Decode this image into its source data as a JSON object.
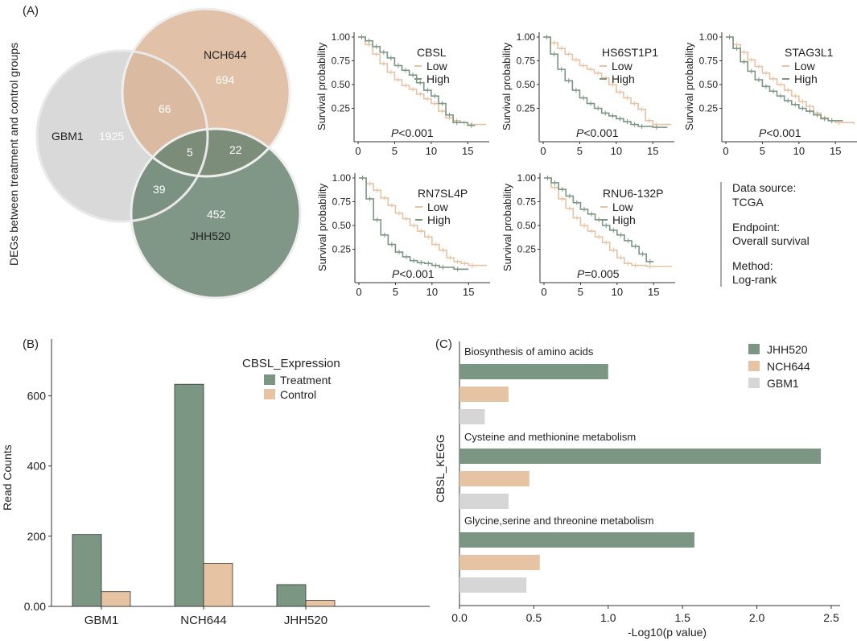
{
  "colors": {
    "green": "#7b9683",
    "tan": "#e6c3a3",
    "gray": "#d6d6d6",
    "venn_gray": "#cfcfcf",
    "venn_tan": "#d9b392",
    "venn_green": "#6a8472"
  },
  "panel_labels": {
    "a": "(A)",
    "b": "(B)",
    "c": "(C)"
  },
  "chart_data": [
    {
      "type": "venn",
      "ylabel": "DEGs between treatment and control groups",
      "sets": [
        {
          "name": "GBM1",
          "only": "1925"
        },
        {
          "name": "NCH644",
          "only": "694"
        },
        {
          "name": "JHH520",
          "only": "452"
        }
      ],
      "overlaps": {
        "gbm1_nch644": "66",
        "nch644_jhh520": "22",
        "gbm1_jhh520": "39",
        "all": "5"
      }
    },
    {
      "type": "line",
      "kind": "kaplan-meier",
      "ylabel": "Survival probability",
      "yticks": [
        "1.00",
        "0.75",
        "0.50",
        "0.25"
      ],
      "xticks": [
        "0",
        "5",
        "10",
        "15"
      ],
      "xlim": [
        0,
        17.5
      ],
      "legend_low": "Low",
      "legend_high": "High",
      "p_prefix": "P",
      "panels": [
        {
          "gene": "CBSL",
          "p": "<0.001",
          "low": [
            [
              0,
              1
            ],
            [
              1,
              0.92
            ],
            [
              2,
              0.82
            ],
            [
              3,
              0.72
            ],
            [
              4,
              0.63
            ],
            [
              5,
              0.55
            ],
            [
              6,
              0.49
            ],
            [
              7,
              0.45
            ],
            [
              8,
              0.4
            ],
            [
              9,
              0.35
            ],
            [
              10,
              0.3
            ],
            [
              11,
              0.22
            ],
            [
              12,
              0.15
            ],
            [
              13,
              0.12
            ],
            [
              14,
              0.1
            ],
            [
              15,
              0.08
            ],
            [
              17.5,
              0.08
            ]
          ],
          "high": [
            [
              0,
              1
            ],
            [
              1,
              0.96
            ],
            [
              2,
              0.9
            ],
            [
              3,
              0.84
            ],
            [
              4,
              0.78
            ],
            [
              5,
              0.7
            ],
            [
              6,
              0.65
            ],
            [
              7,
              0.6
            ],
            [
              8,
              0.52
            ],
            [
              9,
              0.44
            ],
            [
              10,
              0.38
            ],
            [
              11,
              0.3
            ],
            [
              12,
              0.18
            ],
            [
              13,
              0.1
            ],
            [
              15,
              0.07
            ],
            [
              16,
              0.07
            ]
          ]
        },
        {
          "gene": "HS6ST1P1",
          "p": "<0.001",
          "low": [
            [
              0,
              1
            ],
            [
              1,
              0.94
            ],
            [
              2,
              0.88
            ],
            [
              3,
              0.82
            ],
            [
              4,
              0.76
            ],
            [
              5,
              0.7
            ],
            [
              6,
              0.66
            ],
            [
              7,
              0.62
            ],
            [
              8,
              0.57
            ],
            [
              9,
              0.5
            ],
            [
              10,
              0.42
            ],
            [
              11,
              0.36
            ],
            [
              12,
              0.3
            ],
            [
              13,
              0.24
            ],
            [
              14,
              0.12
            ],
            [
              15,
              0.08
            ],
            [
              17.5,
              0.08
            ]
          ],
          "high": [
            [
              0,
              1
            ],
            [
              1,
              0.82
            ],
            [
              2,
              0.66
            ],
            [
              3,
              0.54
            ],
            [
              4,
              0.44
            ],
            [
              5,
              0.36
            ],
            [
              6,
              0.3
            ],
            [
              7,
              0.25
            ],
            [
              8,
              0.2
            ],
            [
              9,
              0.17
            ],
            [
              10,
              0.14
            ],
            [
              11,
              0.11
            ],
            [
              12,
              0.08
            ],
            [
              13,
              0.06
            ],
            [
              15,
              0.05
            ],
            [
              17,
              0.05
            ]
          ]
        },
        {
          "gene": "STAG3L1",
          "p": "<0.001",
          "low": [
            [
              0,
              1
            ],
            [
              1,
              0.92
            ],
            [
              2,
              0.84
            ],
            [
              3,
              0.76
            ],
            [
              4,
              0.69
            ],
            [
              5,
              0.62
            ],
            [
              6,
              0.56
            ],
            [
              7,
              0.5
            ],
            [
              8,
              0.44
            ],
            [
              9,
              0.38
            ],
            [
              10,
              0.32
            ],
            [
              11,
              0.27
            ],
            [
              12,
              0.2
            ],
            [
              13,
              0.15
            ],
            [
              14,
              0.12
            ],
            [
              15,
              0.1
            ],
            [
              17.5,
              0.08
            ]
          ],
          "high": [
            [
              0,
              1
            ],
            [
              1,
              0.88
            ],
            [
              2,
              0.74
            ],
            [
              3,
              0.64
            ],
            [
              4,
              0.55
            ],
            [
              5,
              0.48
            ],
            [
              6,
              0.43
            ],
            [
              7,
              0.38
            ],
            [
              8,
              0.33
            ],
            [
              9,
              0.29
            ],
            [
              10,
              0.25
            ],
            [
              11,
              0.22
            ],
            [
              12,
              0.18
            ],
            [
              13,
              0.14
            ],
            [
              14,
              0.12
            ],
            [
              16,
              0.12
            ]
          ]
        },
        {
          "gene": "RN7SL4P",
          "p": "<0.001",
          "low": [
            [
              0,
              1
            ],
            [
              1,
              0.94
            ],
            [
              2,
              0.87
            ],
            [
              3,
              0.79
            ],
            [
              4,
              0.71
            ],
            [
              5,
              0.63
            ],
            [
              6,
              0.57
            ],
            [
              7,
              0.5
            ],
            [
              8,
              0.44
            ],
            [
              9,
              0.38
            ],
            [
              10,
              0.3
            ],
            [
              11,
              0.24
            ],
            [
              12,
              0.16
            ],
            [
              13,
              0.12
            ],
            [
              14,
              0.1
            ],
            [
              15,
              0.08
            ],
            [
              17.5,
              0.08
            ]
          ],
          "high": [
            [
              0,
              1
            ],
            [
              1,
              0.78
            ],
            [
              2,
              0.56
            ],
            [
              3,
              0.4
            ],
            [
              4,
              0.3
            ],
            [
              5,
              0.22
            ],
            [
              6,
              0.17
            ],
            [
              7,
              0.13
            ],
            [
              8,
              0.11
            ],
            [
              9,
              0.1
            ],
            [
              10,
              0.08
            ],
            [
              11,
              0.06
            ],
            [
              13,
              0.04
            ],
            [
              15,
              0.04
            ]
          ]
        },
        {
          "gene": "RNU6-132P",
          "p": "=0.005",
          "low": [
            [
              0,
              1
            ],
            [
              1,
              0.9
            ],
            [
              2,
              0.78
            ],
            [
              3,
              0.68
            ],
            [
              4,
              0.58
            ],
            [
              5,
              0.5
            ],
            [
              6,
              0.44
            ],
            [
              7,
              0.38
            ],
            [
              8,
              0.32
            ],
            [
              9,
              0.24
            ],
            [
              10,
              0.16
            ],
            [
              11,
              0.1
            ],
            [
              12,
              0.08
            ],
            [
              14,
              0.07
            ],
            [
              17.5,
              0.07
            ]
          ],
          "high": [
            [
              0,
              1
            ],
            [
              1,
              0.95
            ],
            [
              2,
              0.88
            ],
            [
              3,
              0.81
            ],
            [
              4,
              0.74
            ],
            [
              5,
              0.67
            ],
            [
              6,
              0.62
            ],
            [
              7,
              0.56
            ],
            [
              8,
              0.5
            ],
            [
              9,
              0.45
            ],
            [
              10,
              0.4
            ],
            [
              11,
              0.34
            ],
            [
              12,
              0.28
            ],
            [
              13,
              0.2
            ],
            [
              14,
              0.12
            ],
            [
              15,
              0.12
            ]
          ]
        }
      ],
      "info": {
        "line1": "Data source:",
        "line2": "TCGA",
        "line3": "Endpoint:",
        "line4": "Overall survival",
        "line5": "Method:",
        "line6": "Log-rank"
      }
    },
    {
      "type": "bar",
      "title": "",
      "ylabel": "Read Counts",
      "categories": [
        "GBM1",
        "NCH644",
        "JHH520"
      ],
      "series": [
        {
          "name": "Treatment",
          "values": [
            205,
            633,
            62
          ]
        },
        {
          "name": "Control",
          "values": [
            42,
            123,
            17
          ]
        }
      ],
      "ylim": [
        0,
        700
      ],
      "yticks": [
        "0.00",
        "200",
        "400",
        "600"
      ],
      "legend_title": "CBSL_Expression"
    },
    {
      "type": "bar",
      "orientation": "horizontal",
      "ylabel": "CBSL_KEGG",
      "xlabel": "-Log10(p value)",
      "categories": [
        "Biosynthesis of amino acids",
        "Cysteine and methionine metabolism",
        "Glycine,serine and threonine metabolism"
      ],
      "series": [
        {
          "name": "JHH520",
          "values": [
            1.0,
            2.43,
            1.58
          ]
        },
        {
          "name": "NCH644",
          "values": [
            0.33,
            0.47,
            0.54
          ]
        },
        {
          "name": "GBM1",
          "values": [
            0.17,
            0.33,
            0.45
          ]
        }
      ],
      "xlim": [
        0,
        2.6
      ],
      "xticks": [
        "0.0",
        "0.5",
        "1.0",
        "1.5",
        "2.0",
        "2.5"
      ]
    }
  ]
}
